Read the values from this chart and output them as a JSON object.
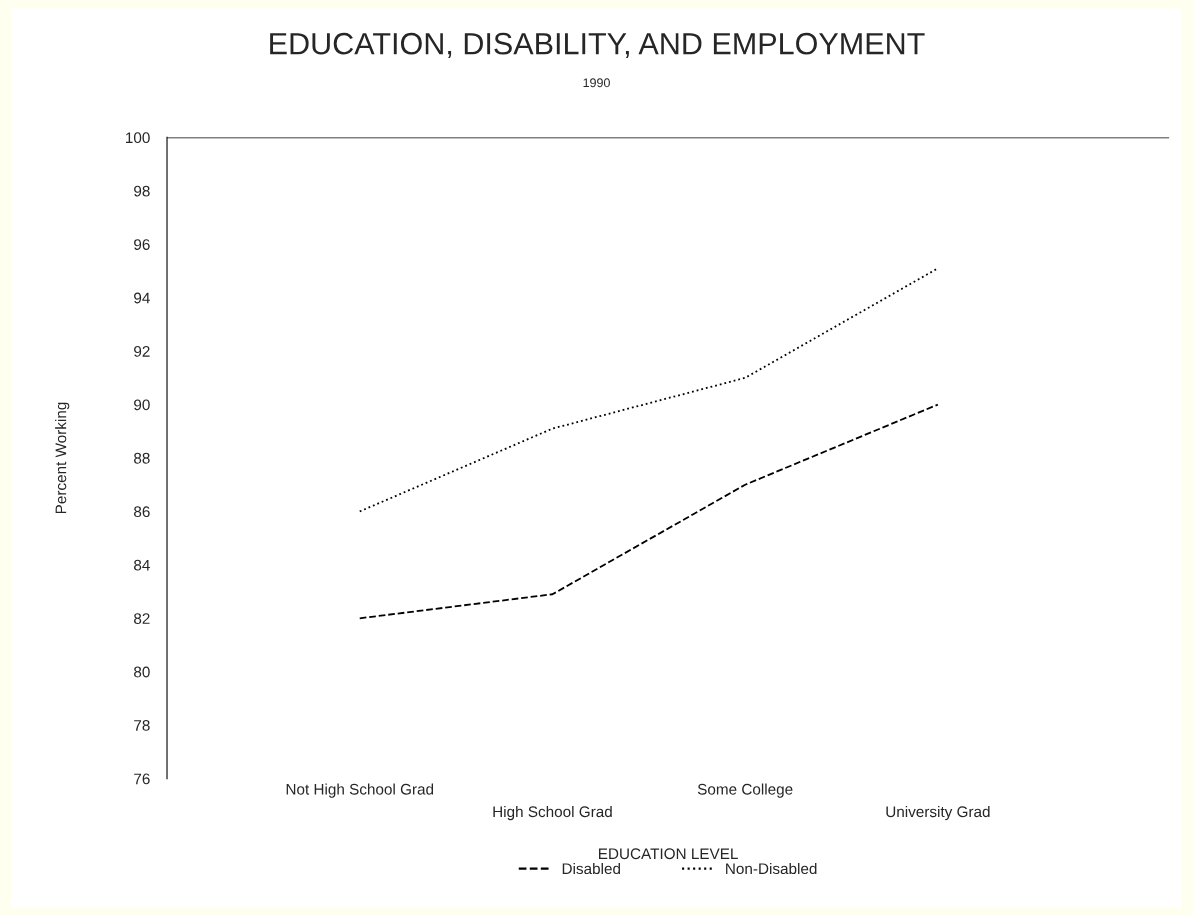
{
  "chart_data": {
    "type": "line",
    "title": "EDUCATION, DISABILITY, AND EMPLOYMENT",
    "subtitle": "1990",
    "xlabel": "EDUCATION LEVEL",
    "ylabel": "Percent Working",
    "categories": [
      "Not High School Grad",
      "High School Grad",
      "Some College",
      "University Grad"
    ],
    "series": [
      {
        "name": "Disabled",
        "color": "#000000",
        "line_style": "dashed",
        "values": [
          82.0,
          82.9,
          87.0,
          90.0
        ]
      },
      {
        "name": "Non-Disabled",
        "color": "#000000",
        "line_style": "dotted",
        "values": [
          86.0,
          89.1,
          91.0,
          95.1
        ]
      }
    ],
    "ylim": [
      76,
      100
    ],
    "yticks": [
      76,
      78,
      80,
      82,
      84,
      86,
      88,
      90,
      92,
      94,
      96,
      98,
      100
    ],
    "ref_lines": [
      {
        "axis": "y",
        "value": 100,
        "color": "#000000"
      }
    ],
    "grid": false,
    "legend": "bottom",
    "marker": "none"
  }
}
